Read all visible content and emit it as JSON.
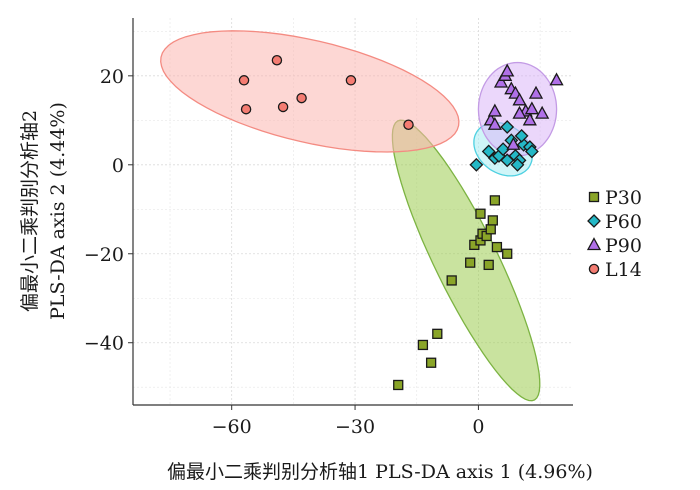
{
  "chart_data": {
    "type": "scatter",
    "title": "",
    "xlabel": "偏最小二乘判别分析轴1 PLS-DA axis 1 (4.96%)",
    "ylabel_line1": "偏最小二乘判别分析轴2",
    "ylabel_line2": "PLS-DA axis 2 (4.44%)",
    "xlim": [
      -84,
      23
    ],
    "ylim": [
      -54,
      33
    ],
    "xticks": [
      -60,
      -30,
      0
    ],
    "yticks": [
      -40,
      -20,
      0,
      20
    ],
    "xtick_labels": [
      "−60",
      "−30",
      "0"
    ],
    "ytick_labels": [
      "−40",
      "−20",
      "0",
      "20"
    ],
    "grid": true,
    "legend_position": "right",
    "series": [
      {
        "name": "P30",
        "marker": "square",
        "color": "#8aa528",
        "ellipse_fill": "#9ccc50",
        "ellipse_stroke": "#7cb342",
        "ellipse": {
          "cx": -3,
          "cy": -21.5,
          "rx": 35.5,
          "ry": 7.5,
          "angle": -62
        },
        "points": [
          {
            "x": -19.5,
            "y": -49.5
          },
          {
            "x": -13.5,
            "y": -40.5
          },
          {
            "x": -11.5,
            "y": -44.5
          },
          {
            "x": -10.0,
            "y": -38.0
          },
          {
            "x": -6.5,
            "y": -26.0
          },
          {
            "x": -2.0,
            "y": -22.0
          },
          {
            "x": -1.0,
            "y": -18.0
          },
          {
            "x": 0.5,
            "y": -17.0
          },
          {
            "x": 1.0,
            "y": -15.5
          },
          {
            "x": 0.5,
            "y": -11.0
          },
          {
            "x": 2.0,
            "y": -16.0
          },
          {
            "x": 3.0,
            "y": -14.5
          },
          {
            "x": 3.5,
            "y": -12.5
          },
          {
            "x": 4.0,
            "y": -8.0
          },
          {
            "x": 2.5,
            "y": -22.5
          },
          {
            "x": 7.0,
            "y": -20.0
          },
          {
            "x": 4.5,
            "y": -18.5
          }
        ]
      },
      {
        "name": "P60",
        "marker": "diamond",
        "color": "#24b8c6",
        "ellipse_fill": "#a8ecf2",
        "ellipse_stroke": "#4dd0e1",
        "ellipse": {
          "cx": 6,
          "cy": 3.5,
          "rx": 7.5,
          "ry": 5.5,
          "angle": -28
        },
        "points": [
          {
            "x": -0.5,
            "y": 0.0
          },
          {
            "x": 2.5,
            "y": 3.0
          },
          {
            "x": 4.0,
            "y": 1.5
          },
          {
            "x": 5.0,
            "y": 2.0
          },
          {
            "x": 6.0,
            "y": 3.5
          },
          {
            "x": 7.0,
            "y": 8.5
          },
          {
            "x": 8.0,
            "y": 5.5
          },
          {
            "x": 9.0,
            "y": 2.0
          },
          {
            "x": 10.0,
            "y": 1.0
          },
          {
            "x": 11.0,
            "y": 4.5
          },
          {
            "x": 12.5,
            "y": 4.0
          },
          {
            "x": 13.0,
            "y": 3.0
          },
          {
            "x": 10.5,
            "y": 6.5
          },
          {
            "x": 7.0,
            "y": 1.0
          },
          {
            "x": 9.5,
            "y": 0.0
          }
        ]
      },
      {
        "name": "P90",
        "marker": "triangle",
        "color": "#b070e8",
        "ellipse_fill": "#dab7f7",
        "ellipse_stroke": "#c39be5",
        "ellipse": {
          "cx": 9.5,
          "cy": 12.5,
          "rx": 9.5,
          "ry": 10.5,
          "angle": 0
        },
        "points": [
          {
            "x": 3.0,
            "y": 10.0
          },
          {
            "x": 4.0,
            "y": 9.0
          },
          {
            "x": 5.5,
            "y": 18.5
          },
          {
            "x": 6.5,
            "y": 20.0
          },
          {
            "x": 8.0,
            "y": 17.0
          },
          {
            "x": 9.0,
            "y": 16.0
          },
          {
            "x": 10.0,
            "y": 14.5
          },
          {
            "x": 11.5,
            "y": 12.0
          },
          {
            "x": 13.0,
            "y": 12.5
          },
          {
            "x": 14.0,
            "y": 16.0
          },
          {
            "x": 15.5,
            "y": 11.5
          },
          {
            "x": 19.0,
            "y": 19.0
          },
          {
            "x": 12.5,
            "y": 10.0
          },
          {
            "x": 8.5,
            "y": 4.5
          },
          {
            "x": 10.0,
            "y": 11.5
          },
          {
            "x": 4.0,
            "y": 12.0
          },
          {
            "x": 7.0,
            "y": 21.0
          }
        ]
      },
      {
        "name": "L14",
        "marker": "circle",
        "color": "#f47c72",
        "ellipse_fill": "#fbb6b0",
        "ellipse_stroke": "#f48b82",
        "ellipse": {
          "cx": -41,
          "cy": 16.5,
          "rx": 37,
          "ry": 11.5,
          "angle": -12
        },
        "points": [
          {
            "x": -57.0,
            "y": 19.0
          },
          {
            "x": -56.5,
            "y": 12.5
          },
          {
            "x": -49.0,
            "y": 23.5
          },
          {
            "x": -47.5,
            "y": 13.0
          },
          {
            "x": -43.0,
            "y": 15.0
          },
          {
            "x": -31.0,
            "y": 19.0
          },
          {
            "x": -17.0,
            "y": 9.0
          }
        ]
      }
    ]
  }
}
